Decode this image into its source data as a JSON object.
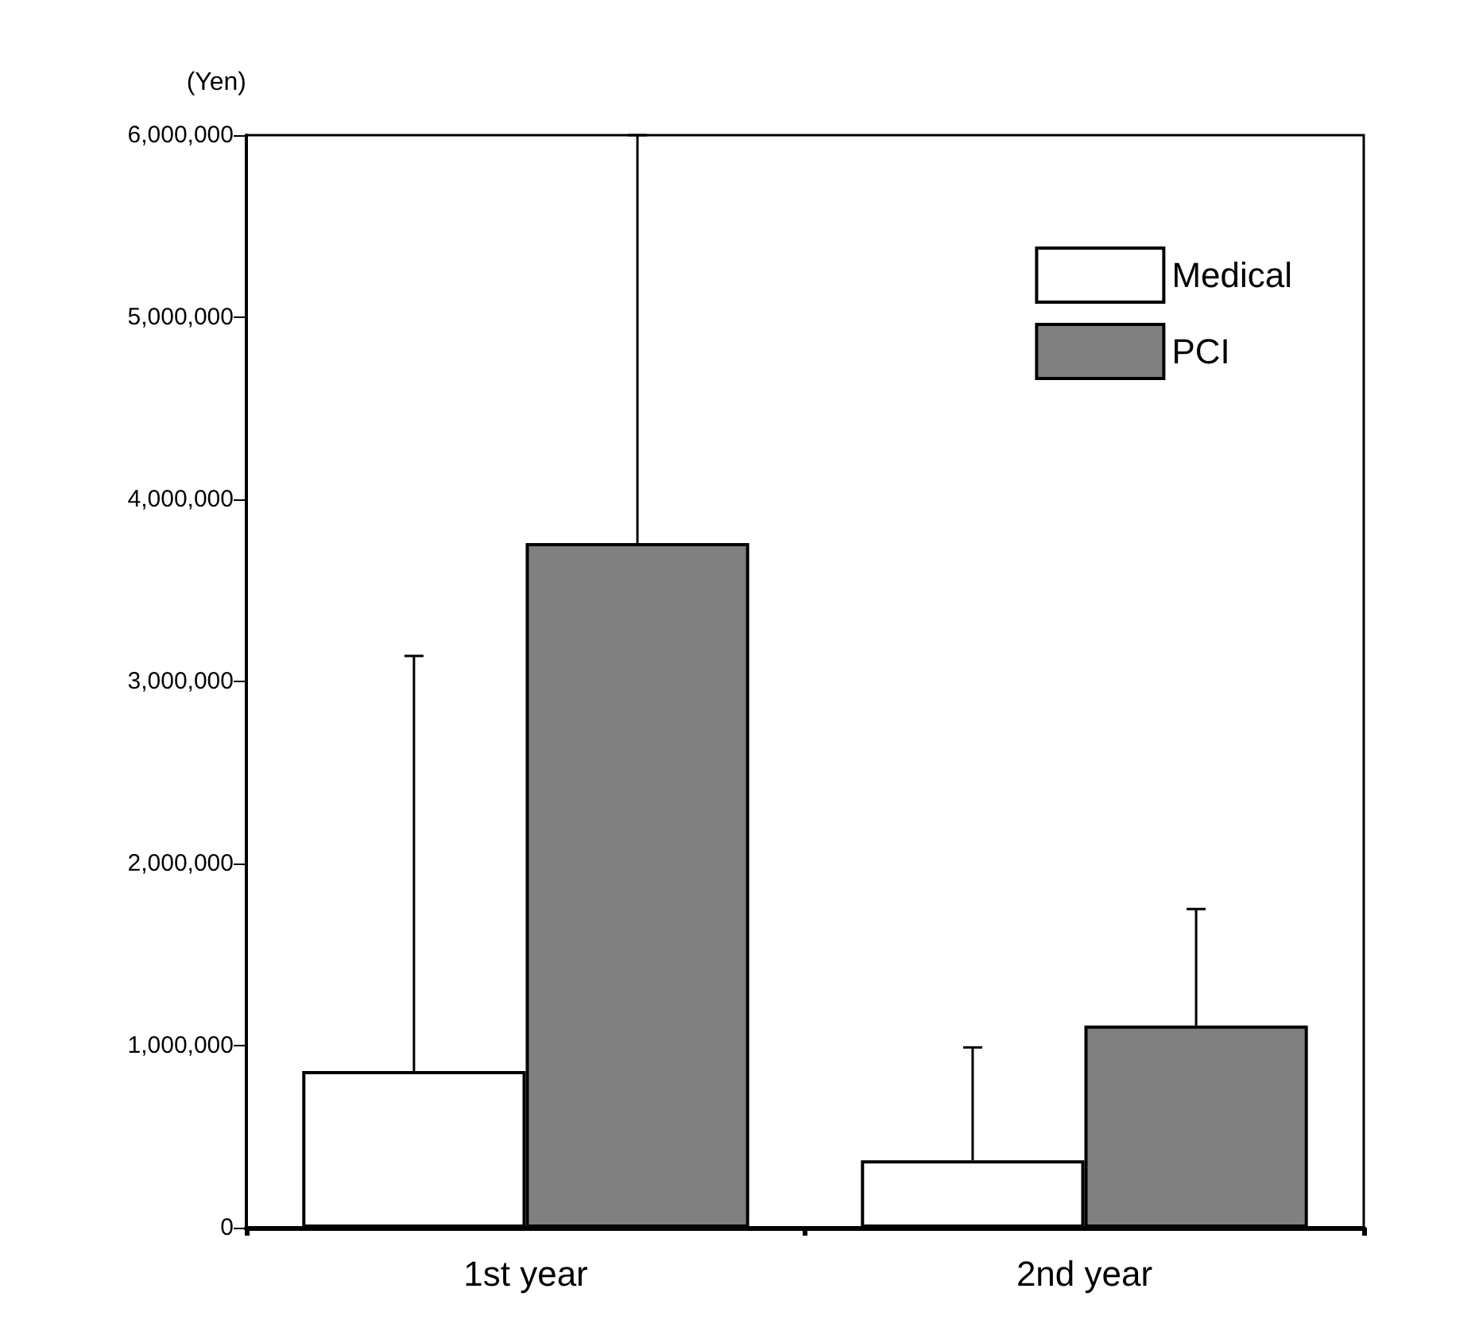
{
  "chart_data": {
    "type": "bar",
    "ylabel": "(Yen)",
    "categories": [
      "1st year",
      "2nd year"
    ],
    "series": [
      {
        "name": "Medical",
        "color": "#ffffff",
        "values": [
          860000,
          370000
        ],
        "errors": [
          [
            860000,
            3140000
          ],
          [
            370000,
            990000
          ]
        ]
      },
      {
        "name": "PCI",
        "color": "#808080",
        "values": [
          3760000,
          1110000
        ],
        "errors": [
          [
            3760000,
            6000000
          ],
          [
            1110000,
            1750000
          ]
        ]
      }
    ],
    "ylim": [
      0,
      6000000
    ],
    "yticks": [
      0,
      {
        "value": 1000000,
        "label": "1,000,000"
      },
      {
        "value": 2000000,
        "label": "2,000,000"
      },
      {
        "value": 3000000,
        "label": "3,000,000"
      },
      {
        "value": 4000000,
        "label": "4,000,000"
      },
      {
        "value": 5000000,
        "label": "5,000,000"
      },
      {
        "value": 6000000,
        "label": "6,000,000"
      }
    ],
    "grid": false,
    "legend": "top right"
  }
}
